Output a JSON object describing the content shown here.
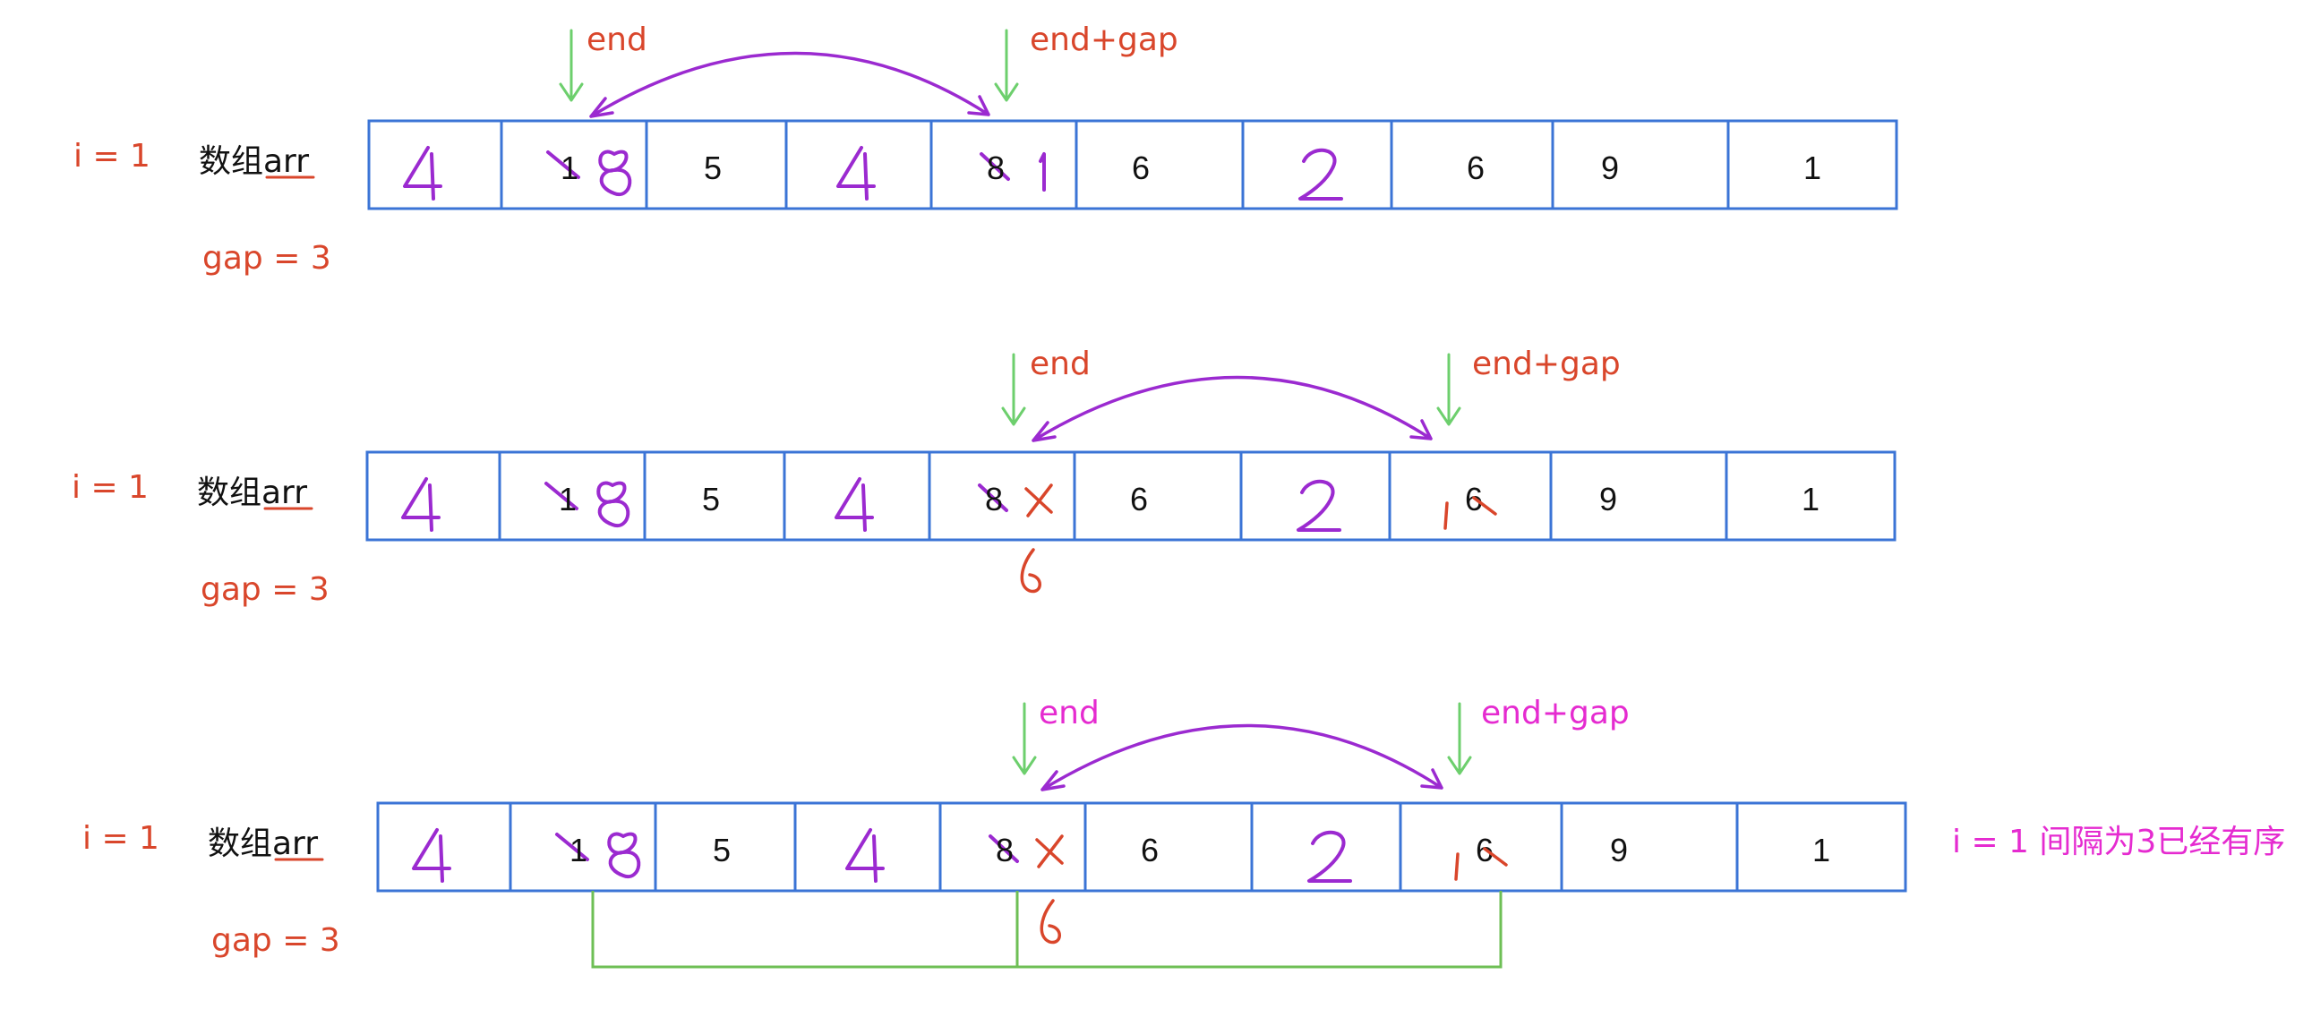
{
  "panels": [
    {
      "i_label": "i = 1",
      "array_label": "数组arr",
      "gap_label": "gap = 3",
      "end_label": "end",
      "end_gap_label": "end+gap",
      "cells": [
        "1",
        "5",
        "8",
        "6",
        "6",
        "9",
        "1"
      ]
    },
    {
      "i_label": "i = 1",
      "array_label": "数组arr",
      "gap_label": "gap = 3",
      "end_label": "end",
      "end_gap_label": "end+gap",
      "cells": [
        "1",
        "5",
        "8",
        "6",
        "6",
        "9",
        "1"
      ]
    },
    {
      "i_label": "i = 1",
      "array_label": "数组arr",
      "gap_label": "gap = 3",
      "end_label": "end",
      "end_gap_label": "end+gap",
      "cells": [
        "1",
        "5",
        "8",
        "6",
        "6",
        "9",
        "1"
      ],
      "note": "i = 1 间隔为3已经有序"
    }
  ],
  "colors": {
    "cell_border": "#3b74d6",
    "label_red": "#d9462b",
    "label_magenta": "#e52bd0",
    "arrow_green": "#6dcf6d",
    "hand_purple": "#9b2ad0",
    "bracket_green": "#6ebf55"
  }
}
